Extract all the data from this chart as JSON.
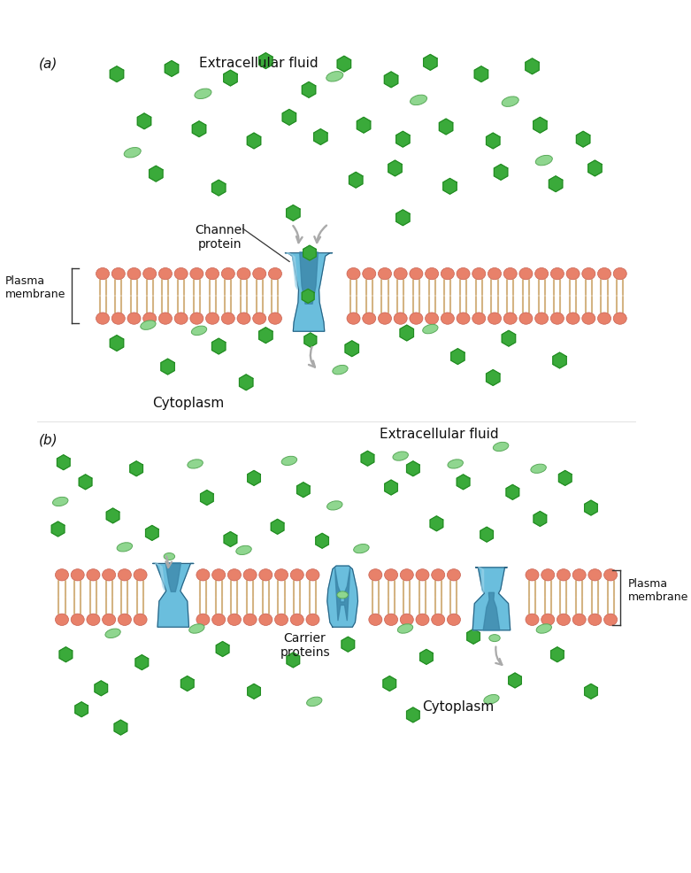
{
  "bg_color": "#ffffff",
  "head_color": "#e8816a",
  "head_edge_color": "#c86050",
  "tail_color": "#d4b483",
  "protein_fill": "#6abedd",
  "protein_dark": "#3a85a8",
  "protein_edge": "#2a6080",
  "green_hex_color": "#3aaa3a",
  "green_hex_edge": "#228822",
  "lt_green_color": "#8fd68f",
  "lt_green_edge": "#5aaa5a",
  "arrow_color": "#aaaaaa",
  "text_color": "#111111",
  "label_a": "(a)",
  "label_b": "(b)",
  "extracell": "Extracellular fluid",
  "cytoplasm": "Cytoplasm",
  "chan_label": "Channel\nprotein",
  "carr_label": "Carrier\nproteins",
  "pmem_label": "Plasma\nmembrane"
}
